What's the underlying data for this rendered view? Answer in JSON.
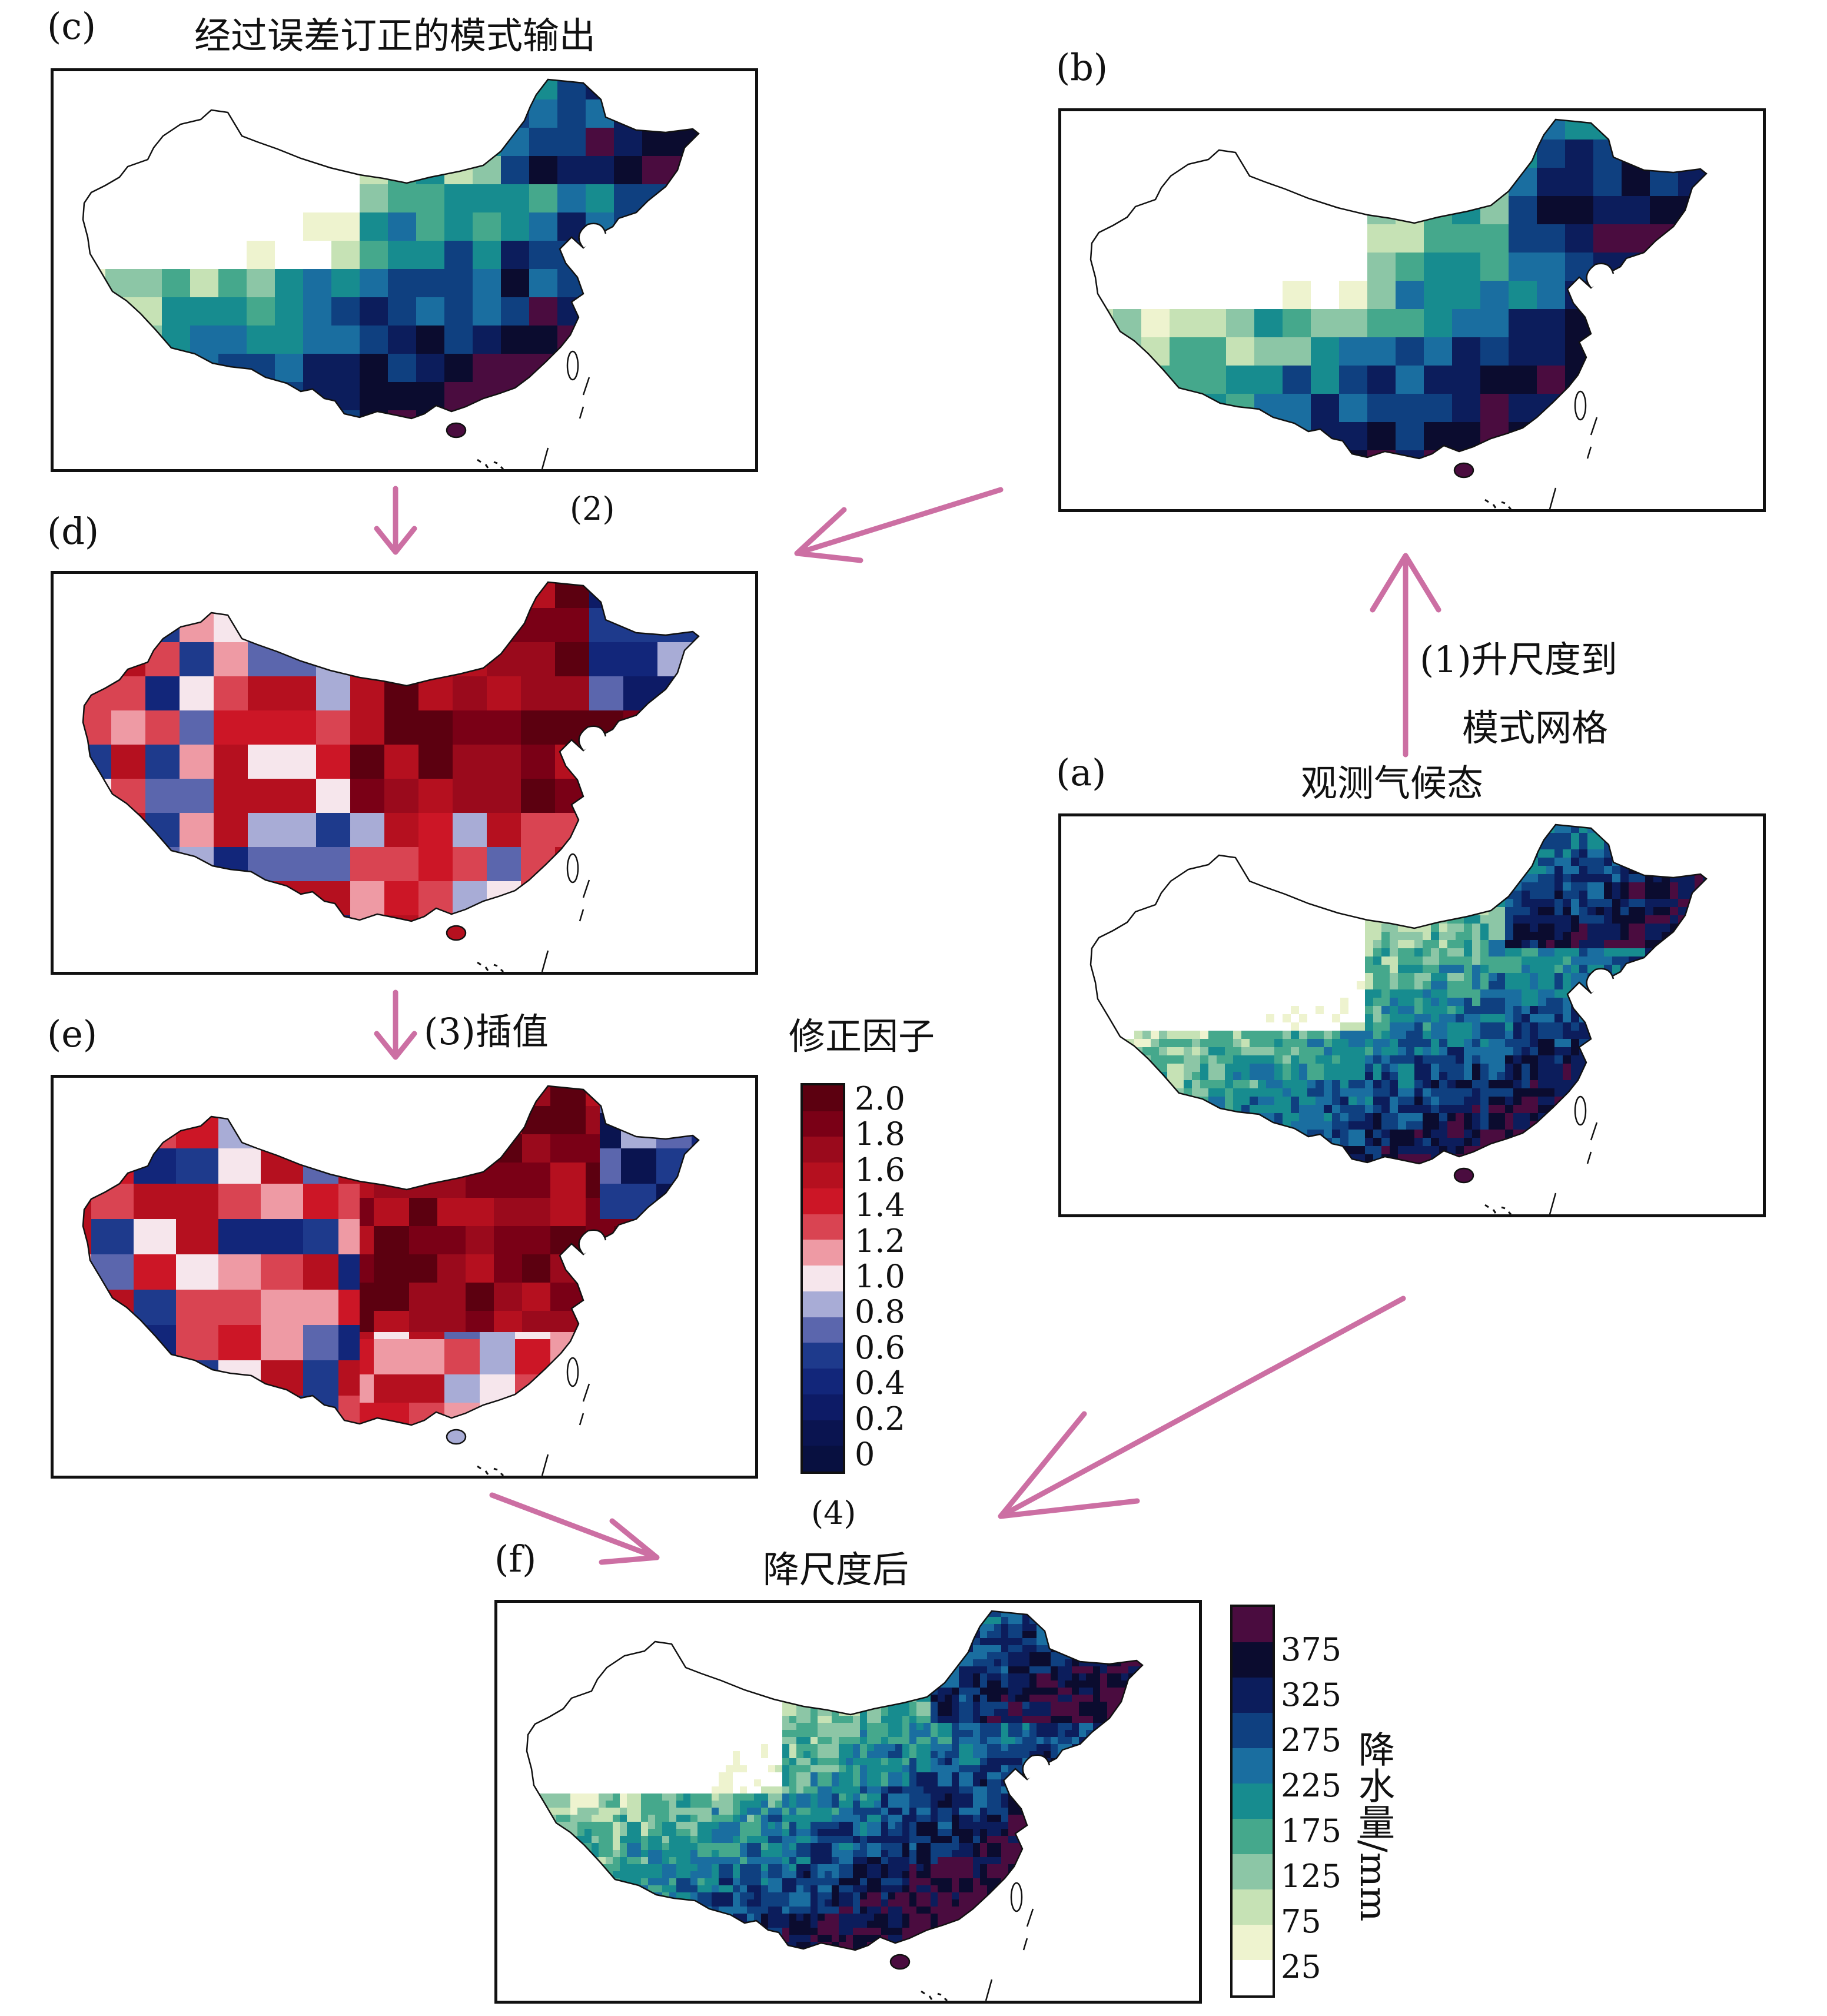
{
  "panels": {
    "a": {
      "label": "(a)",
      "title": "观测气候态"
    },
    "b": {
      "label": "(b)"
    },
    "c": {
      "label": "(c)",
      "title": "经过误差订正的模式输出"
    },
    "d": {
      "label": "(d)"
    },
    "e": {
      "label": "(e)"
    },
    "f": {
      "label": "(f)",
      "title": "降尺度后"
    }
  },
  "steps": {
    "s1_line1": "(1)升尺度到",
    "s1_line2": "模式网格",
    "s2": "(2)",
    "s3": "(3)插值",
    "s4": "(4)"
  },
  "colorbars": {
    "factor": {
      "title": "修正因子",
      "ticks": [
        "2.0",
        "1.8",
        "1.6",
        "1.4",
        "1.2",
        "1.0",
        "0.8",
        "0.6",
        "0.4",
        "0.2",
        "0"
      ],
      "colors": [
        "#5c0010",
        "#7a0016",
        "#9a0a1c",
        "#b5101f",
        "#cc1626",
        "#d94452",
        "#ee9aa4",
        "#f6e6ec",
        "#a8acd6",
        "#5b66ad",
        "#1e3a8c",
        "#12267a",
        "#0d1b66",
        "#0a1450",
        "#081040"
      ]
    },
    "precip": {
      "title": "降水量/mm",
      "ticks": [
        "375",
        "325",
        "275",
        "225",
        "175",
        "125",
        "75",
        "25"
      ],
      "colors": [
        "#4a0c3f",
        "#0b0c2f",
        "#0c1d5c",
        "#0f4080",
        "#1a6ea0",
        "#178c8f",
        "#45a88c",
        "#8cc6a6",
        "#c6e2b5",
        "#eef3cf",
        "#ffffff"
      ]
    }
  },
  "palettes": {
    "arrow": "#cc6fa3",
    "outline": "#111111"
  }
}
